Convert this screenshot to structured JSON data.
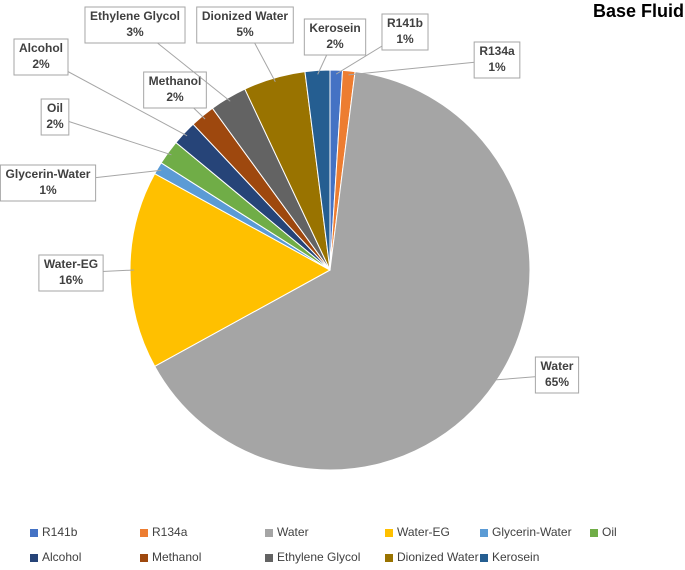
{
  "chart_data": {
    "type": "pie",
    "title": "Base Fluid",
    "categories": [
      "R141b",
      "R134a",
      "Water",
      "Water-EG",
      "Glycerin-Water",
      "Oil",
      "Alcohol",
      "Methanol",
      "Ethylene Glycol",
      "Dionized Water",
      "Kerosein"
    ],
    "values": [
      1,
      1,
      65,
      16,
      1,
      2,
      2,
      2,
      3,
      5,
      2
    ],
    "value_labels": [
      "1%",
      "1%",
      "65%",
      "16%",
      "1%",
      "2%",
      "2%",
      "2%",
      "3%",
      "5%",
      "2%"
    ],
    "colors": [
      "#4472c4",
      "#ed7d31",
      "#a5a5a5",
      "#ffc000",
      "#5b9bd5",
      "#70ad47",
      "#264478",
      "#9e480e",
      "#636363",
      "#997300",
      "#255e91"
    ],
    "legend": "bottom"
  }
}
